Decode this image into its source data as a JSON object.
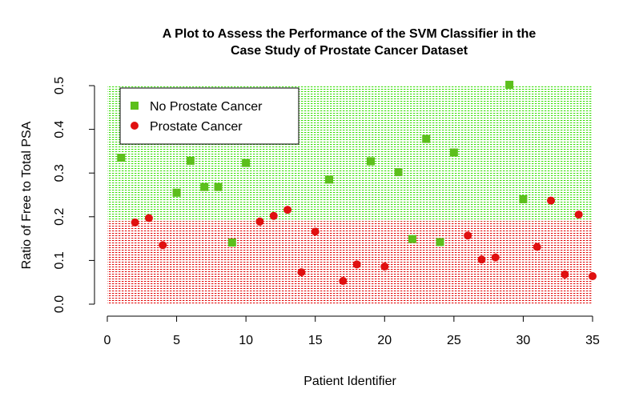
{
  "chart_data": {
    "type": "scatter",
    "title_line1": "A Plot to Assess the Performance of the SVM Classifier in the",
    "title_line2": "Case Study of Prostate Cancer Dataset",
    "xlabel": "Patient Identifier",
    "ylabel": "Ratio of Free to Total PSA",
    "xlim": [
      0,
      35
    ],
    "ylim": [
      0,
      0.5
    ],
    "x_ticks": [
      "0",
      "5",
      "10",
      "15",
      "20",
      "25",
      "30",
      "35"
    ],
    "y_ticks": [
      "0.0",
      "0.1",
      "0.2",
      "0.3",
      "0.4",
      "0.5"
    ],
    "grid": false,
    "legend_position": "top-left",
    "regions": [
      {
        "name": "No Prostate Cancer",
        "y_from": 0.19,
        "y_to": 0.5,
        "color": "#22cc00"
      },
      {
        "name": "Prostate Cancer",
        "y_from": 0.0,
        "y_to": 0.19,
        "color": "#dd0000"
      }
    ],
    "series": [
      {
        "name": "No Prostate Cancer",
        "marker": "square",
        "color": "#5cbf1c",
        "points": [
          {
            "x": 1,
            "y": 0.335
          },
          {
            "x": 5,
            "y": 0.255
          },
          {
            "x": 6,
            "y": 0.328
          },
          {
            "x": 7,
            "y": 0.268
          },
          {
            "x": 8,
            "y": 0.268
          },
          {
            "x": 9,
            "y": 0.141
          },
          {
            "x": 10,
            "y": 0.323
          },
          {
            "x": 16,
            "y": 0.285
          },
          {
            "x": 19,
            "y": 0.327
          },
          {
            "x": 21,
            "y": 0.302
          },
          {
            "x": 22,
            "y": 0.149
          },
          {
            "x": 23,
            "y": 0.378
          },
          {
            "x": 24,
            "y": 0.142
          },
          {
            "x": 25,
            "y": 0.347
          },
          {
            "x": 29,
            "y": 0.502
          },
          {
            "x": 30,
            "y": 0.24
          }
        ]
      },
      {
        "name": "Prostate Cancer",
        "marker": "circle",
        "color": "#e01010",
        "points": [
          {
            "x": 2,
            "y": 0.187
          },
          {
            "x": 3,
            "y": 0.197
          },
          {
            "x": 4,
            "y": 0.135
          },
          {
            "x": 11,
            "y": 0.189
          },
          {
            "x": 12,
            "y": 0.202
          },
          {
            "x": 13,
            "y": 0.216
          },
          {
            "x": 14,
            "y": 0.073
          },
          {
            "x": 15,
            "y": 0.166
          },
          {
            "x": 17,
            "y": 0.053
          },
          {
            "x": 18,
            "y": 0.091
          },
          {
            "x": 20,
            "y": 0.086
          },
          {
            "x": 26,
            "y": 0.157
          },
          {
            "x": 27,
            "y": 0.102
          },
          {
            "x": 28,
            "y": 0.107
          },
          {
            "x": 31,
            "y": 0.131
          },
          {
            "x": 32,
            "y": 0.237
          },
          {
            "x": 33,
            "y": 0.068
          },
          {
            "x": 34,
            "y": 0.205
          },
          {
            "x": 35,
            "y": 0.064
          }
        ]
      }
    ]
  }
}
